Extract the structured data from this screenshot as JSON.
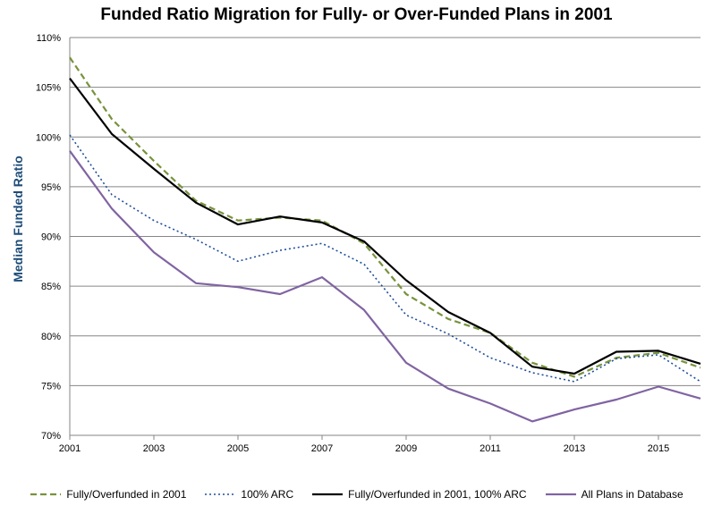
{
  "chart_data": {
    "type": "line",
    "title": "Funded Ratio Migration for Fully- or Over-Funded Plans in 2001",
    "xlabel": "",
    "ylabel": "Median Funded Ratio",
    "xlim": [
      2001,
      2016
    ],
    "ylim": [
      70,
      110
    ],
    "x_ticks": [
      2001,
      2003,
      2005,
      2007,
      2009,
      2011,
      2013,
      2015
    ],
    "y_ticks": [
      "70%",
      "75%",
      "80%",
      "85%",
      "90%",
      "95%",
      "100%",
      "105%",
      "110%"
    ],
    "grid": "horizontal",
    "legend_position": "bottom",
    "x": [
      2001,
      2002,
      2003,
      2004,
      2005,
      2006,
      2007,
      2008,
      2009,
      2010,
      2011,
      2012,
      2013,
      2014,
      2015,
      2016
    ],
    "series": [
      {
        "name": "Fully/Overfunded in 2001",
        "color": "#77933c",
        "style": "dashed",
        "values": [
          108.0,
          101.8,
          97.6,
          93.6,
          91.6,
          91.9,
          91.6,
          89.3,
          84.2,
          81.7,
          80.3,
          77.3,
          75.9,
          77.8,
          78.3,
          76.8
        ]
      },
      {
        "name": "100% ARC",
        "color": "#1f4e9a",
        "style": "dotted",
        "values": [
          100.2,
          94.2,
          91.6,
          89.7,
          87.5,
          88.6,
          89.3,
          87.2,
          82.1,
          80.2,
          77.8,
          76.3,
          75.4,
          77.7,
          78.1,
          75.4
        ]
      },
      {
        "name": "Fully/Overfunded in 2001, 100% ARC",
        "color": "#000000",
        "style": "solid",
        "values": [
          105.9,
          100.3,
          96.8,
          93.4,
          91.2,
          92.0,
          91.4,
          89.5,
          85.6,
          82.4,
          80.3,
          76.9,
          76.2,
          78.4,
          78.5,
          77.2
        ]
      },
      {
        "name": "All Plans in Database",
        "color": "#8064a2",
        "style": "solid",
        "values": [
          98.6,
          92.8,
          88.4,
          85.3,
          84.9,
          84.2,
          85.9,
          82.6,
          77.3,
          74.7,
          73.2,
          71.4,
          72.6,
          73.6,
          74.9,
          73.7
        ]
      }
    ]
  }
}
